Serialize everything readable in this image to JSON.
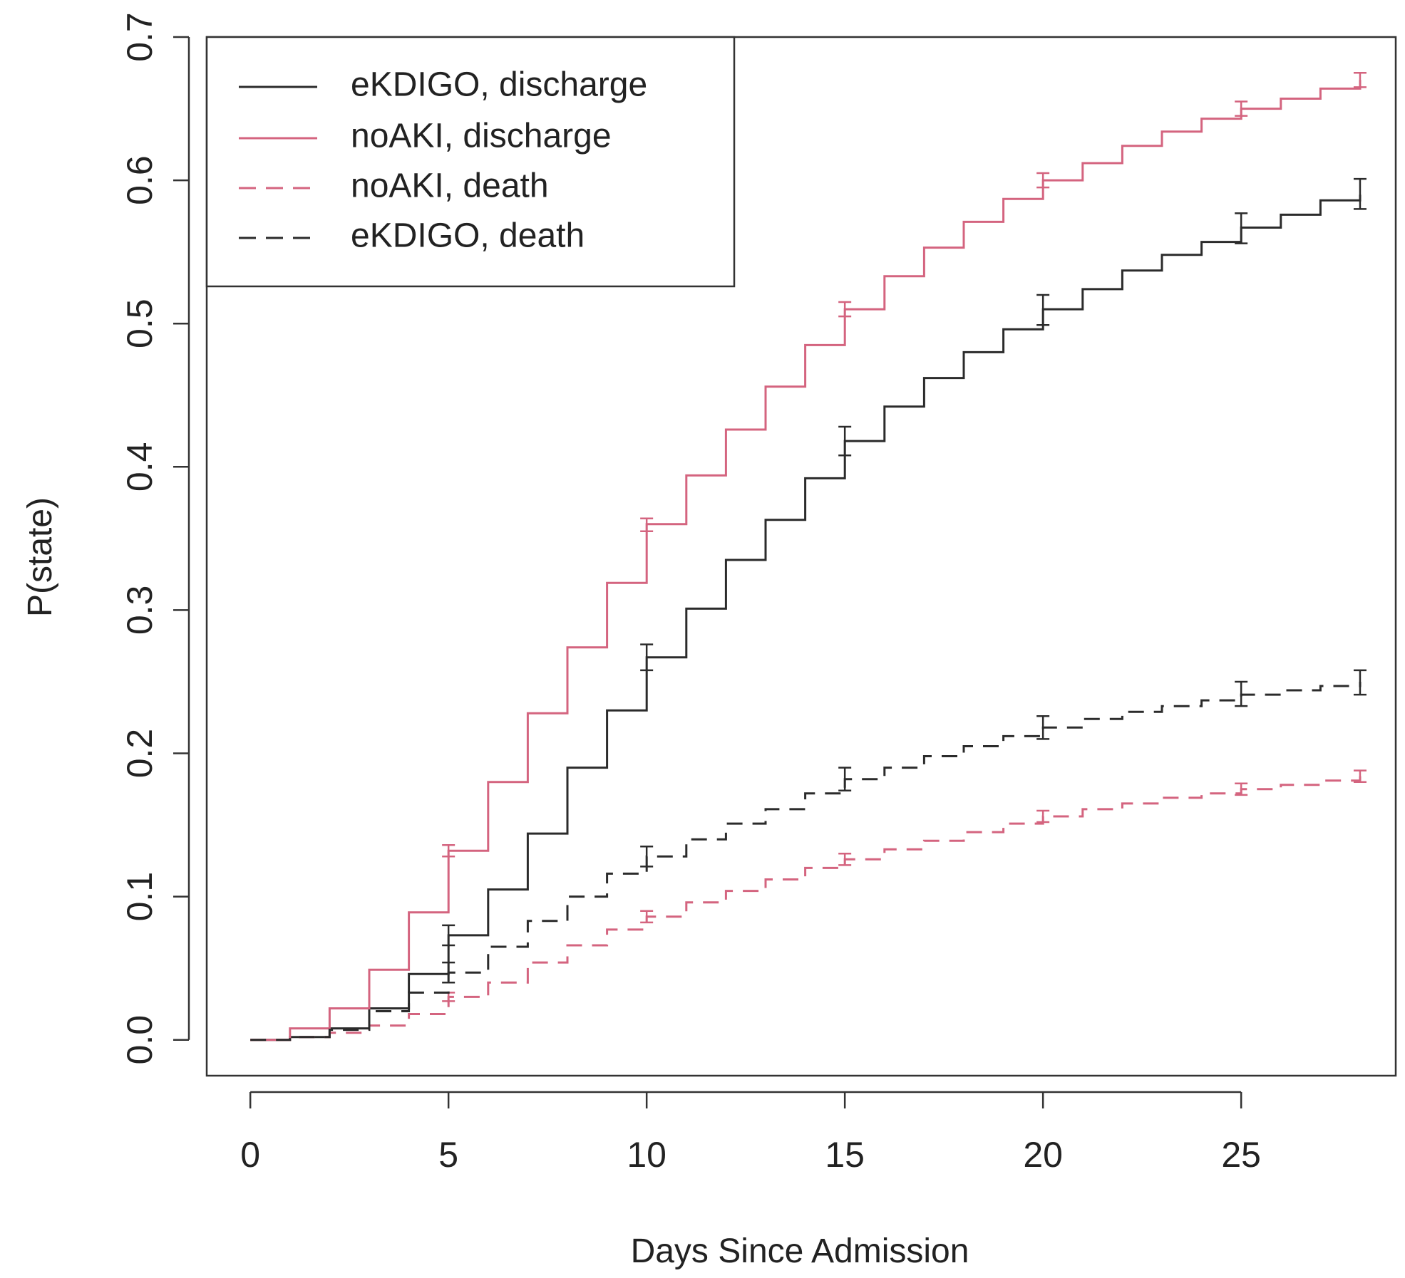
{
  "chart_data": {
    "type": "line",
    "step": true,
    "xlabel": "Days Since Admission",
    "ylabel": "P(state)",
    "xlim": [
      -1.1,
      28.9
    ],
    "ylim": [
      -0.025,
      0.7
    ],
    "x_ticks": [
      0,
      5,
      10,
      15,
      20,
      25
    ],
    "y_ticks": [
      0.0,
      0.1,
      0.2,
      0.3,
      0.4,
      0.5,
      0.6,
      0.7
    ],
    "y_tick_labels": [
      "0.0",
      "0.1",
      "0.2",
      "0.3",
      "0.4",
      "0.5",
      "0.6",
      "0.7"
    ],
    "grid": false,
    "legend_position": "top-left",
    "series": [
      {
        "name": "eKDIGO, discharge",
        "color": "#2b2b2b",
        "dash": "solid",
        "x": [
          0,
          1,
          2,
          3,
          4,
          5,
          6,
          7,
          8,
          9,
          10,
          11,
          12,
          13,
          14,
          15,
          16,
          17,
          18,
          19,
          20,
          21,
          22,
          23,
          24,
          25,
          26,
          27,
          28
        ],
        "y": [
          0.0,
          0.002,
          0.008,
          0.022,
          0.046,
          0.073,
          0.105,
          0.144,
          0.19,
          0.23,
          0.267,
          0.301,
          0.335,
          0.363,
          0.392,
          0.418,
          0.442,
          0.462,
          0.48,
          0.496,
          0.51,
          0.524,
          0.537,
          0.548,
          0.557,
          0.567,
          0.576,
          0.586,
          0.59
        ],
        "error_bars": [
          {
            "x": 5,
            "y": 0.073,
            "lo": 0.066,
            "hi": 0.08
          },
          {
            "x": 10,
            "y": 0.267,
            "lo": 0.258,
            "hi": 0.276
          },
          {
            "x": 15,
            "y": 0.418,
            "lo": 0.408,
            "hi": 0.428
          },
          {
            "x": 20,
            "y": 0.51,
            "lo": 0.499,
            "hi": 0.52
          },
          {
            "x": 25,
            "y": 0.567,
            "lo": 0.556,
            "hi": 0.577
          },
          {
            "x": 28,
            "y": 0.59,
            "lo": 0.58,
            "hi": 0.601
          }
        ]
      },
      {
        "name": "noAKI, discharge",
        "color": "#d4647f",
        "dash": "solid",
        "x": [
          0,
          1,
          2,
          3,
          4,
          5,
          6,
          7,
          8,
          9,
          10,
          11,
          12,
          13,
          14,
          15,
          16,
          17,
          18,
          19,
          20,
          21,
          22,
          23,
          24,
          25,
          26,
          27,
          28
        ],
        "y": [
          0.0,
          0.008,
          0.022,
          0.049,
          0.089,
          0.132,
          0.18,
          0.228,
          0.274,
          0.319,
          0.36,
          0.394,
          0.426,
          0.456,
          0.485,
          0.51,
          0.533,
          0.553,
          0.571,
          0.587,
          0.6,
          0.612,
          0.624,
          0.634,
          0.643,
          0.65,
          0.657,
          0.664,
          0.67
        ],
        "error_bars": [
          {
            "x": 5,
            "y": 0.132,
            "lo": 0.128,
            "hi": 0.136
          },
          {
            "x": 10,
            "y": 0.36,
            "lo": 0.355,
            "hi": 0.364
          },
          {
            "x": 15,
            "y": 0.51,
            "lo": 0.505,
            "hi": 0.515
          },
          {
            "x": 20,
            "y": 0.6,
            "lo": 0.595,
            "hi": 0.605
          },
          {
            "x": 25,
            "y": 0.65,
            "lo": 0.645,
            "hi": 0.655
          },
          {
            "x": 28,
            "y": 0.67,
            "lo": 0.665,
            "hi": 0.675
          }
        ]
      },
      {
        "name": "noAKI, death",
        "color": "#d4647f",
        "dash": "dashed",
        "x": [
          0,
          1,
          2,
          3,
          4,
          5,
          6,
          7,
          8,
          9,
          10,
          11,
          12,
          13,
          14,
          15,
          16,
          17,
          18,
          19,
          20,
          21,
          22,
          23,
          24,
          25,
          26,
          27,
          28
        ],
        "y": [
          0.0,
          0.002,
          0.005,
          0.01,
          0.018,
          0.03,
          0.04,
          0.054,
          0.066,
          0.077,
          0.086,
          0.096,
          0.104,
          0.112,
          0.12,
          0.126,
          0.133,
          0.139,
          0.145,
          0.151,
          0.156,
          0.161,
          0.165,
          0.169,
          0.172,
          0.175,
          0.178,
          0.181,
          0.184
        ],
        "error_bars": [
          {
            "x": 5,
            "y": 0.03,
            "lo": 0.027,
            "hi": 0.033
          },
          {
            "x": 10,
            "y": 0.086,
            "lo": 0.082,
            "hi": 0.09
          },
          {
            "x": 15,
            "y": 0.126,
            "lo": 0.122,
            "hi": 0.13
          },
          {
            "x": 20,
            "y": 0.156,
            "lo": 0.152,
            "hi": 0.16
          },
          {
            "x": 25,
            "y": 0.175,
            "lo": 0.171,
            "hi": 0.179
          },
          {
            "x": 28,
            "y": 0.184,
            "lo": 0.18,
            "hi": 0.188
          }
        ]
      },
      {
        "name": "eKDIGO, death",
        "color": "#2b2b2b",
        "dash": "dashed",
        "x": [
          0,
          1,
          2,
          3,
          4,
          5,
          6,
          7,
          8,
          9,
          10,
          11,
          12,
          13,
          14,
          15,
          16,
          17,
          18,
          19,
          20,
          21,
          22,
          23,
          24,
          25,
          26,
          27,
          28
        ],
        "y": [
          0.0,
          0.002,
          0.007,
          0.02,
          0.033,
          0.047,
          0.065,
          0.083,
          0.1,
          0.116,
          0.128,
          0.14,
          0.151,
          0.161,
          0.172,
          0.182,
          0.19,
          0.198,
          0.205,
          0.212,
          0.218,
          0.224,
          0.229,
          0.233,
          0.237,
          0.241,
          0.244,
          0.247,
          0.25
        ],
        "error_bars": [
          {
            "x": 5,
            "y": 0.047,
            "lo": 0.04,
            "hi": 0.054
          },
          {
            "x": 10,
            "y": 0.128,
            "lo": 0.121,
            "hi": 0.135
          },
          {
            "x": 15,
            "y": 0.182,
            "lo": 0.174,
            "hi": 0.19
          },
          {
            "x": 20,
            "y": 0.218,
            "lo": 0.21,
            "hi": 0.226
          },
          {
            "x": 25,
            "y": 0.241,
            "lo": 0.233,
            "hi": 0.25
          },
          {
            "x": 28,
            "y": 0.25,
            "lo": 0.241,
            "hi": 0.258
          }
        ]
      }
    ]
  }
}
